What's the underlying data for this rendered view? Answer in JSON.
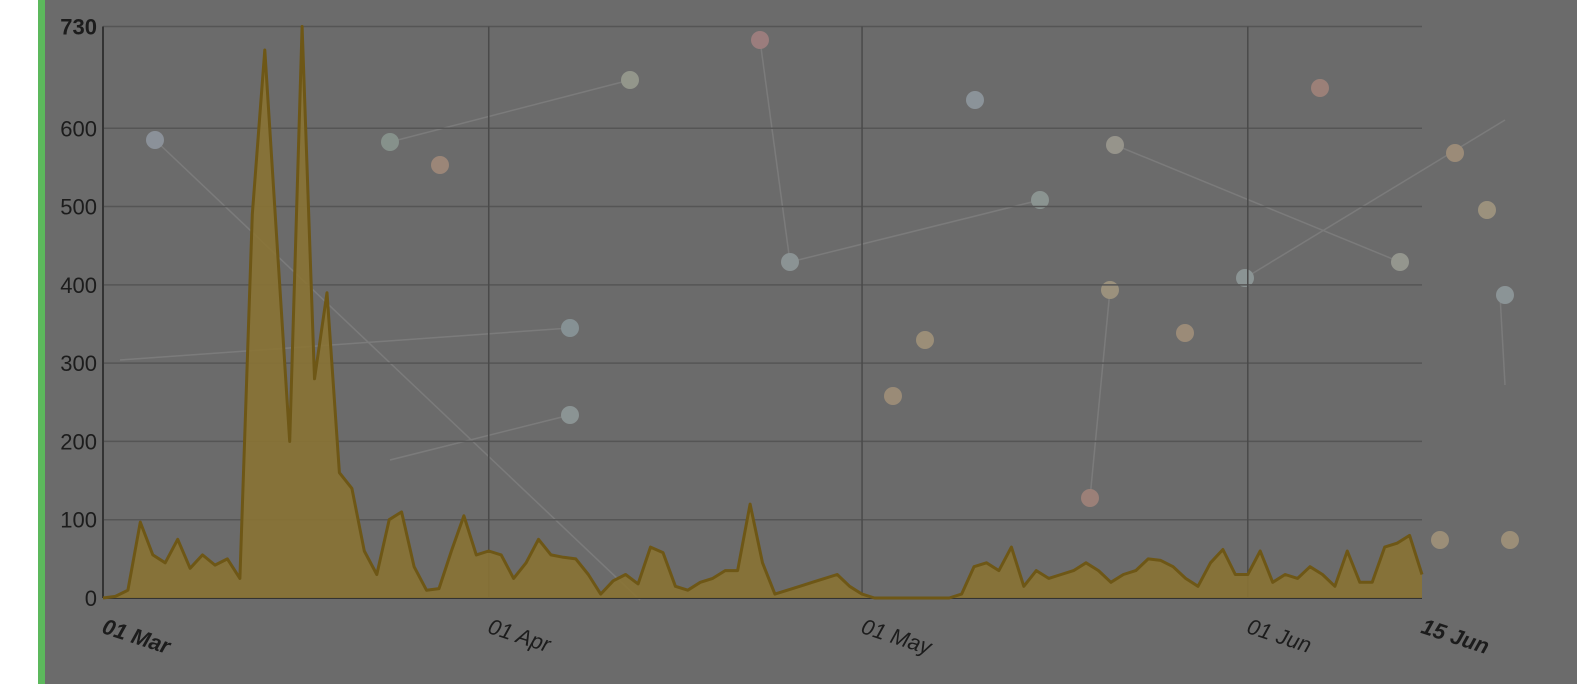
{
  "chart_data": {
    "type": "area",
    "x": [
      0,
      1,
      2,
      3,
      4,
      5,
      6,
      7,
      8,
      9,
      10,
      11,
      12,
      13,
      14,
      15,
      16,
      17,
      18,
      19,
      20,
      21,
      22,
      23,
      24,
      25,
      26,
      27,
      28,
      29,
      30,
      31,
      32,
      33,
      34,
      35,
      36,
      37,
      38,
      39,
      40,
      41,
      42,
      43,
      44,
      45,
      46,
      47,
      48,
      49,
      50,
      51,
      52,
      53,
      54,
      55,
      56,
      57,
      58,
      59,
      60,
      61,
      62,
      63,
      64,
      65,
      66,
      67,
      68,
      69,
      70,
      71,
      72,
      73,
      74,
      75,
      76,
      77,
      78,
      79,
      80,
      81,
      82,
      83,
      84,
      85,
      86,
      87,
      88,
      89,
      90,
      91,
      92,
      93,
      94,
      95,
      96,
      97,
      98,
      99,
      100,
      101,
      102,
      103,
      104,
      105,
      106
    ],
    "values": [
      0,
      2,
      10,
      97,
      55,
      45,
      75,
      38,
      55,
      42,
      50,
      25,
      490,
      700,
      450,
      200,
      730,
      280,
      390,
      160,
      140,
      60,
      30,
      100,
      110,
      40,
      10,
      12,
      60,
      105,
      55,
      60,
      55,
      25,
      45,
      75,
      55,
      52,
      50,
      30,
      5,
      22,
      30,
      18,
      65,
      58,
      15,
      10,
      20,
      25,
      35,
      35,
      120,
      45,
      5,
      10,
      15,
      20,
      25,
      30,
      15,
      5,
      0,
      0,
      0,
      0,
      0,
      0,
      0,
      5,
      40,
      45,
      35,
      65,
      15,
      35,
      25,
      30,
      35,
      45,
      35,
      20,
      30,
      35,
      50,
      48,
      40,
      25,
      15,
      45,
      62,
      30,
      30,
      60,
      20,
      30,
      25,
      40,
      30,
      15,
      60,
      20,
      20,
      65,
      70,
      80,
      30
    ],
    "color": "#8a7334",
    "line_color": "#6e5716",
    "xlim": [
      0,
      106
    ],
    "xticks": [
      {
        "value": 0,
        "label": "01 Mar"
      },
      {
        "value": 31,
        "label": "01 Apr"
      },
      {
        "value": 61,
        "label": "01 May"
      },
      {
        "value": 92,
        "label": "01 Jun"
      },
      {
        "value": 106,
        "label": "15 Jun"
      }
    ],
    "ylim": [
      0,
      730
    ],
    "yticks": [
      0,
      100,
      200,
      300,
      400,
      500,
      600,
      730
    ],
    "grid": true
  }
}
